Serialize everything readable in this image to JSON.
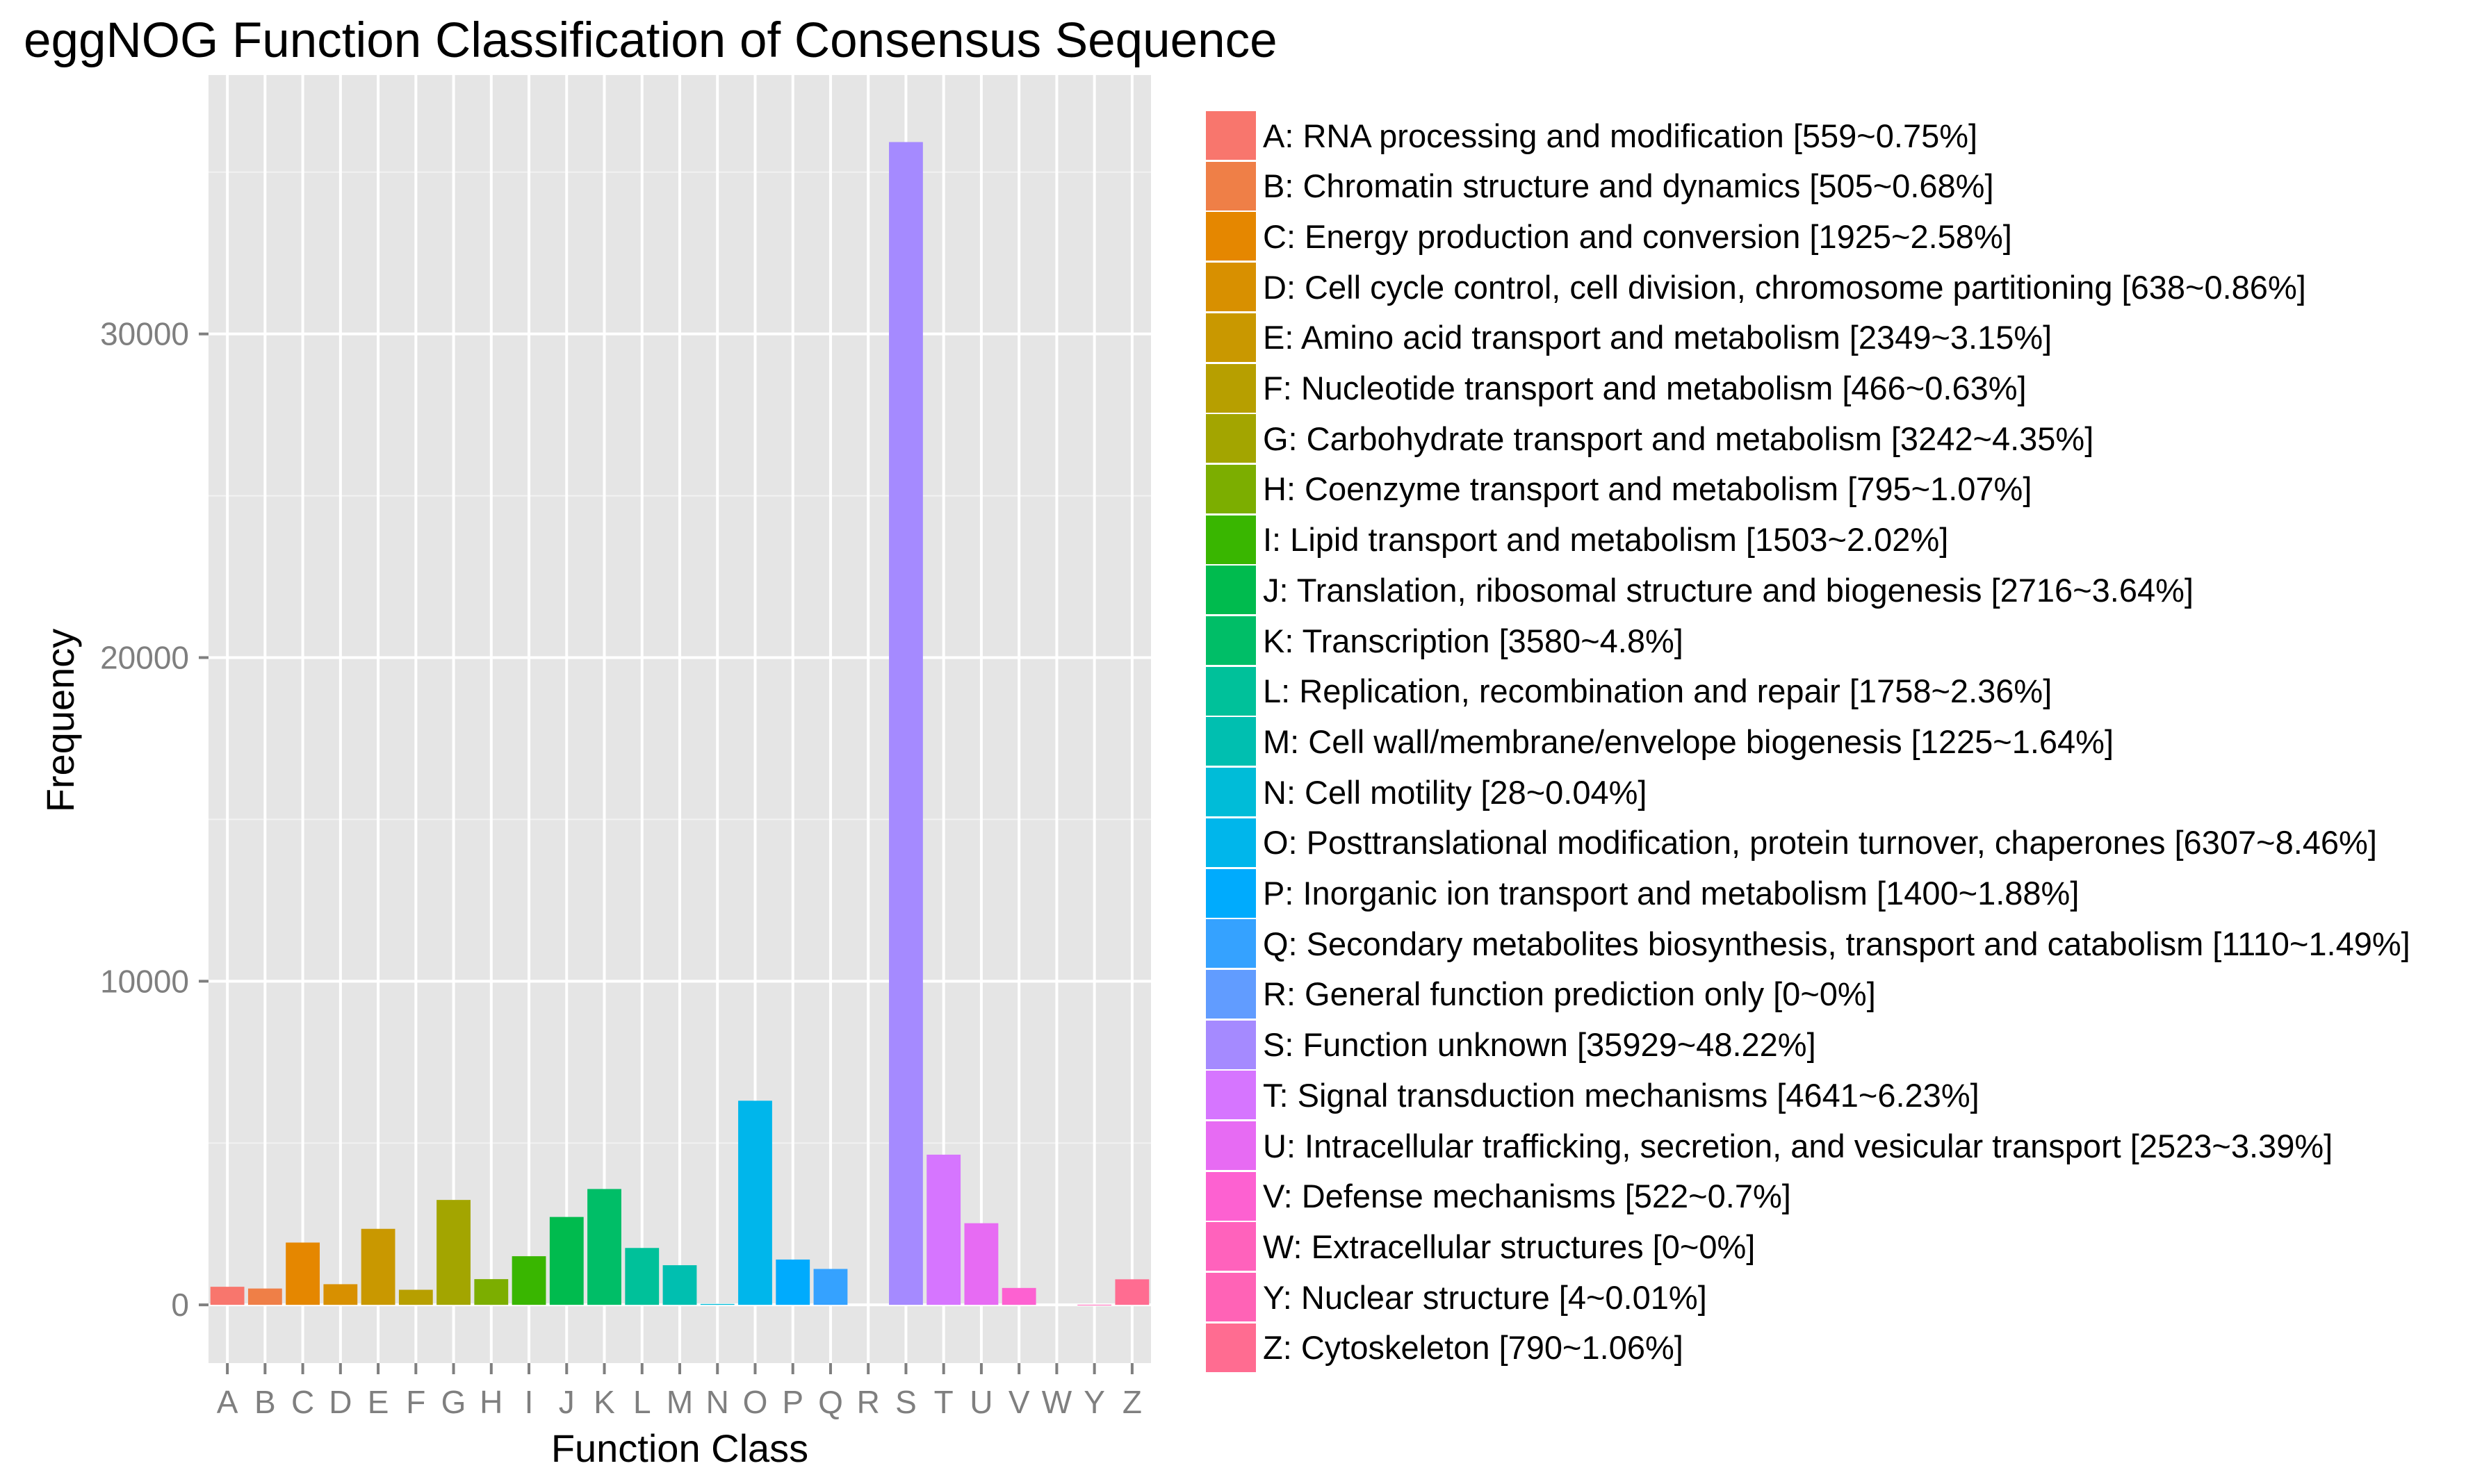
{
  "chart_data": {
    "type": "bar",
    "title": "eggNOG Function Classification of Consensus Sequence",
    "xlabel": "Function Class",
    "ylabel": "Frequency",
    "ylim": [
      -1800,
      38000
    ],
    "yticks": [
      0,
      10000,
      20000,
      30000
    ],
    "ytick_labels": [
      "0",
      "10000",
      "20000",
      "30000"
    ],
    "grid": true,
    "legend_position": "right",
    "categories": [
      "A",
      "B",
      "C",
      "D",
      "E",
      "F",
      "G",
      "H",
      "I",
      "J",
      "K",
      "L",
      "M",
      "N",
      "O",
      "P",
      "Q",
      "R",
      "S",
      "T",
      "U",
      "V",
      "W",
      "Y",
      "Z"
    ],
    "values": [
      559,
      505,
      1925,
      638,
      2349,
      466,
      3242,
      795,
      1503,
      2716,
      3580,
      1758,
      1225,
      28,
      6307,
      1400,
      1110,
      0,
      35929,
      4641,
      2523,
      522,
      0,
      4,
      790
    ],
    "colors": [
      "#F8766D",
      "#EF7F47",
      "#E58700",
      "#D89000",
      "#C99800",
      "#B79F00",
      "#A3A500",
      "#7CAE00",
      "#39B600",
      "#00BB4E",
      "#00BE67",
      "#00C19A",
      "#00BFB0",
      "#00BCD8",
      "#00B6EB",
      "#00ABFD",
      "#35A2FF",
      "#619CFF",
      "#A58AFF",
      "#D675FF",
      "#E76BF3",
      "#FD61D1",
      "#FF62BC",
      "#FF63B6",
      "#FF6C91"
    ],
    "legend": [
      "A: RNA processing and modification [559~0.75%]",
      "B: Chromatin structure and dynamics [505~0.68%]",
      "C: Energy production and conversion [1925~2.58%]",
      "D: Cell cycle control, cell division, chromosome partitioning [638~0.86%]",
      "E: Amino acid transport and metabolism [2349~3.15%]",
      "F: Nucleotide transport and metabolism [466~0.63%]",
      "G: Carbohydrate transport and metabolism [3242~4.35%]",
      "H: Coenzyme transport and metabolism [795~1.07%]",
      "I: Lipid transport and metabolism [1503~2.02%]",
      "J: Translation, ribosomal structure and biogenesis [2716~3.64%]",
      "K: Transcription [3580~4.8%]",
      "L: Replication, recombination and repair [1758~2.36%]",
      "M: Cell wall/membrane/envelope biogenesis [1225~1.64%]",
      "N: Cell motility [28~0.04%]",
      "O: Posttranslational modification, protein turnover, chaperones [6307~8.46%]",
      "P: Inorganic ion transport and metabolism [1400~1.88%]",
      "Q: Secondary metabolites biosynthesis, transport and catabolism [1110~1.49%]",
      "R: General function prediction only [0~0%]",
      "S: Function unknown [35929~48.22%]",
      "T: Signal transduction mechanisms [4641~6.23%]",
      "U: Intracellular trafficking, secretion, and vesicular transport [2523~3.39%]",
      "V: Defense mechanisms [522~0.7%]",
      "W: Extracellular structures [0~0%]",
      "Y: Nuclear structure [4~0.01%]",
      "Z: Cytoskeleton [790~1.06%]"
    ]
  }
}
